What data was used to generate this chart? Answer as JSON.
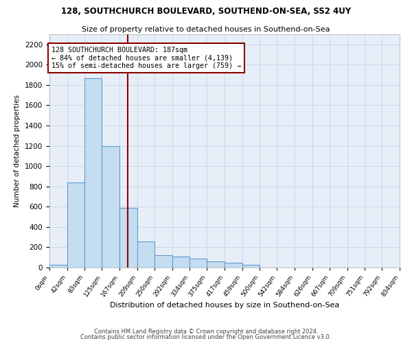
{
  "title": "128, SOUTHCHURCH BOULEVARD, SOUTHEND-ON-SEA, SS2 4UY",
  "subtitle": "Size of property relative to detached houses in Southend-on-Sea",
  "xlabel": "Distribution of detached houses by size in Southend-on-Sea",
  "ylabel": "Number of detached properties",
  "footer_line1": "Contains HM Land Registry data © Crown copyright and database right 2024.",
  "footer_line2": "Contains public sector information licensed under the Open Government Licence v3.0.",
  "annotation_line1": "128 SOUTHCHURCH BOULEVARD: 187sqm",
  "annotation_line2": "← 84% of detached houses are smaller (4,139)",
  "annotation_line3": "15% of semi-detached houses are larger (759) →",
  "property_sqm": 187,
  "bin_edges": [
    0,
    42,
    83,
    125,
    167,
    209,
    250,
    292,
    334,
    375,
    417,
    459,
    500,
    542,
    584,
    626,
    667,
    709,
    751,
    792,
    834
  ],
  "bar_heights": [
    30,
    840,
    1870,
    1200,
    590,
    260,
    120,
    110,
    90,
    60,
    45,
    30,
    0,
    0,
    0,
    0,
    0,
    0,
    0,
    0
  ],
  "bar_color": "#c5ddf0",
  "bar_edge_color": "#5b9bd5",
  "vline_color": "#8b0000",
  "vline_x": 187,
  "annotation_box_color": "#8b0000",
  "grid_color": "#c8d4e8",
  "background_color": "#e8eef8",
  "ylim": [
    0,
    2300
  ],
  "yticks": [
    0,
    200,
    400,
    600,
    800,
    1000,
    1200,
    1400,
    1600,
    1800,
    2000,
    2200
  ]
}
